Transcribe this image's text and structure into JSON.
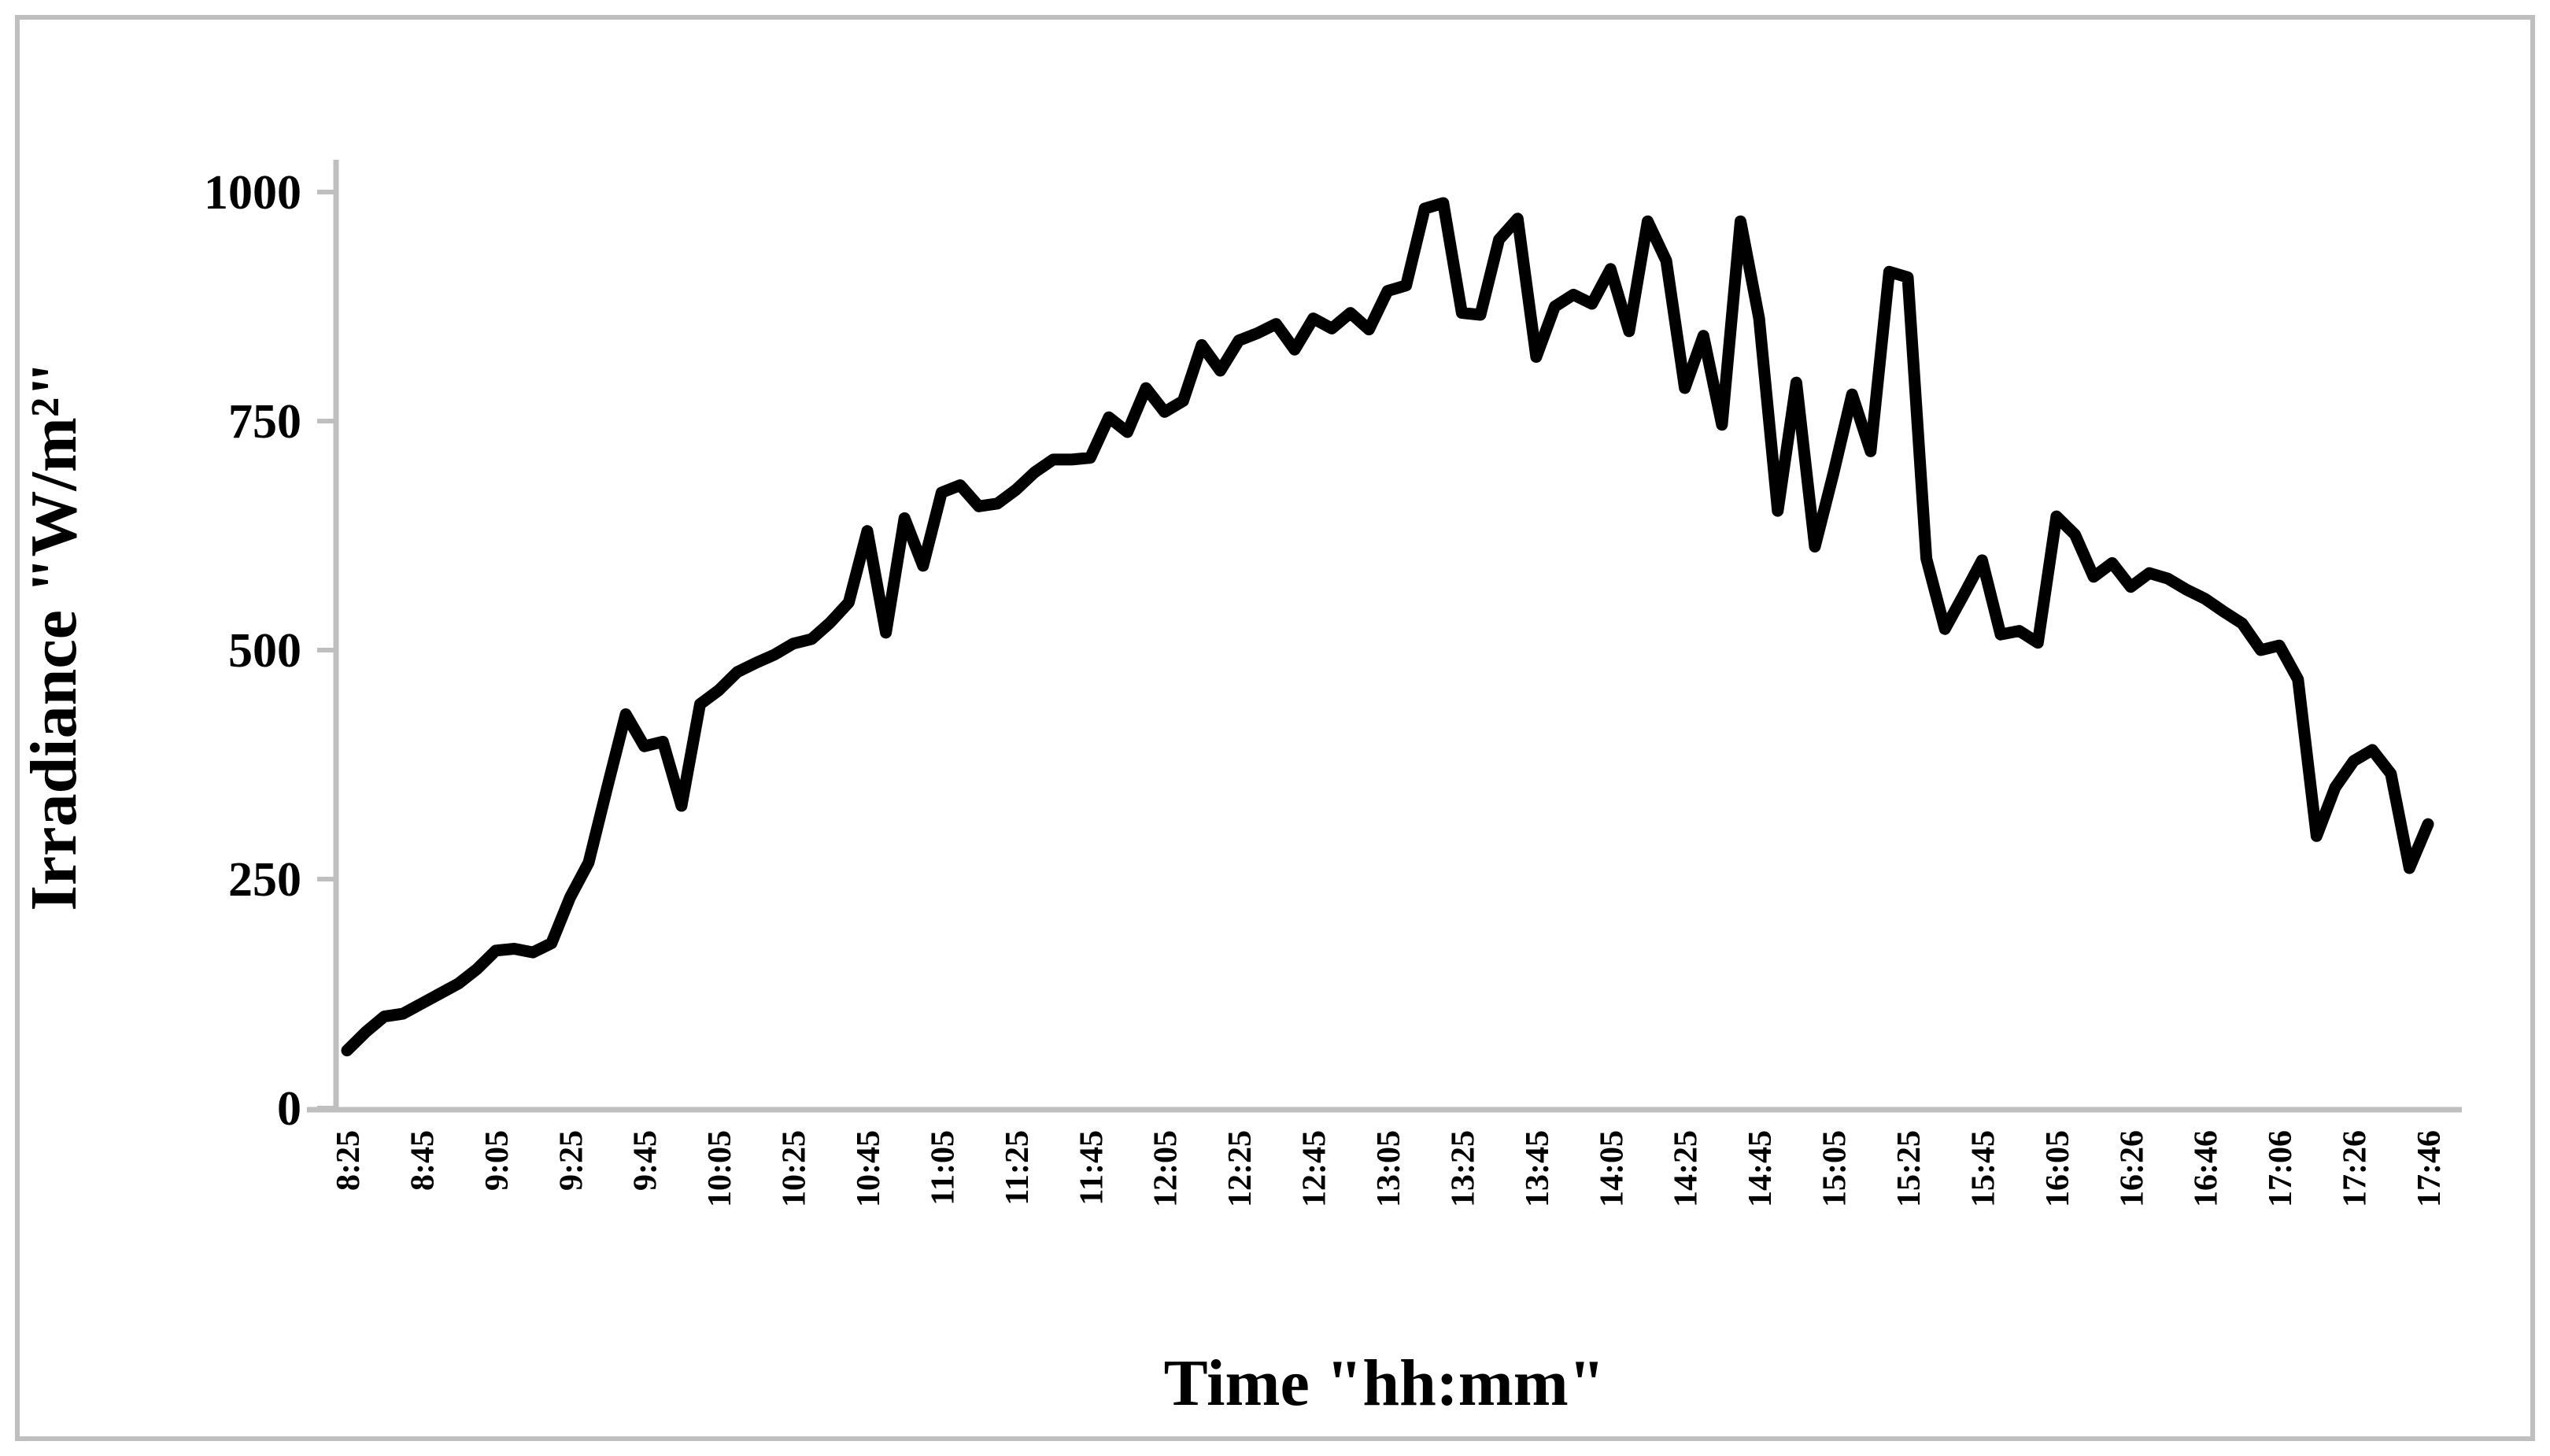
{
  "figure": {
    "background_color": "#ffffff",
    "border_color": "#bfbfbf",
    "axis_color": "#bfbfbf",
    "line_color": "#000000",
    "text_color": "#000000"
  },
  "chart_data": {
    "type": "line",
    "title": "",
    "xlabel": "Time \"hh:mm\"",
    "ylabel": "Irradiance \"W/m²\"",
    "legend_position": "none",
    "grid": false,
    "ylim": [
      0,
      1050
    ],
    "y_ticks": [
      0,
      250,
      500,
      750,
      1000
    ],
    "x_tick_every": 4,
    "x_tick_labels": [
      "8:25",
      "8:45",
      "9:05",
      "9:25",
      "9:45",
      "10:05",
      "10:25",
      "10:45",
      "11:05",
      "11:25",
      "11:45",
      "12:05",
      "12:25",
      "12:45",
      "13:05",
      "13:25",
      "13:45",
      "14:05",
      "14:25",
      "14:45",
      "15:05",
      "15:25",
      "15:45",
      "16:05",
      "16:26",
      "16:46",
      "17:06",
      "17:26",
      "17:46"
    ],
    "x": [
      "8:25",
      "8:30",
      "8:35",
      "8:40",
      "8:45",
      "8:50",
      "8:55",
      "9:00",
      "9:05",
      "9:10",
      "9:15",
      "9:20",
      "9:25",
      "9:30",
      "9:35",
      "9:40",
      "9:45",
      "9:50",
      "9:55",
      "10:00",
      "10:05",
      "10:10",
      "10:15",
      "10:20",
      "10:25",
      "10:30",
      "10:35",
      "10:40",
      "10:45",
      "10:50",
      "10:55",
      "11:00",
      "11:05",
      "11:10",
      "11:15",
      "11:20",
      "11:25",
      "11:30",
      "11:35",
      "11:40",
      "11:45",
      "11:50",
      "11:55",
      "12:00",
      "12:05",
      "12:10",
      "12:15",
      "12:20",
      "12:25",
      "12:30",
      "12:35",
      "12:40",
      "12:45",
      "12:50",
      "12:55",
      "13:00",
      "13:05",
      "13:10",
      "13:15",
      "13:20",
      "13:25",
      "13:30",
      "13:35",
      "13:40",
      "13:45",
      "13:50",
      "13:55",
      "14:00",
      "14:05",
      "14:10",
      "14:15",
      "14:20",
      "14:25",
      "14:30",
      "14:35",
      "14:40",
      "14:45",
      "14:50",
      "14:55",
      "15:00",
      "15:05",
      "15:10",
      "15:15",
      "15:20",
      "15:25",
      "15:30",
      "15:35",
      "15:40",
      "15:45",
      "15:50",
      "15:55",
      "16:00",
      "16:05",
      "16:10",
      "16:15",
      "16:21",
      "16:26",
      "16:31",
      "16:36",
      "16:41",
      "16:46",
      "16:51",
      "16:56",
      "17:01",
      "17:06",
      "17:11",
      "17:16",
      "17:21",
      "17:26",
      "17:31",
      "17:36",
      "17:41",
      "17:46"
    ],
    "values": [
      63,
      83,
      100,
      103,
      114,
      125,
      136,
      152,
      172,
      174,
      170,
      180,
      230,
      268,
      350,
      430,
      395,
      400,
      330,
      441,
      456,
      476,
      486,
      495,
      507,
      512,
      530,
      552,
      630,
      519,
      644,
      592,
      672,
      680,
      657,
      660,
      675,
      694,
      708,
      708,
      710,
      754,
      738,
      786,
      760,
      772,
      833,
      805,
      838,
      846,
      856,
      828,
      862,
      851,
      868,
      850,
      892,
      898,
      982,
      988,
      868,
      866,
      948,
      971,
      820,
      875,
      888,
      878,
      916,
      848,
      968,
      925,
      786,
      843,
      746,
      968,
      862,
      652,
      792,
      613,
      693,
      779,
      717,
      913,
      907,
      600,
      523,
      560,
      598,
      517,
      521,
      508,
      646,
      626,
      580,
      595,
      569,
      584,
      578,
      566,
      556,
      542,
      529,
      500,
      505,
      468,
      297,
      350,
      379,
      391,
      365,
      262,
      310
    ]
  }
}
